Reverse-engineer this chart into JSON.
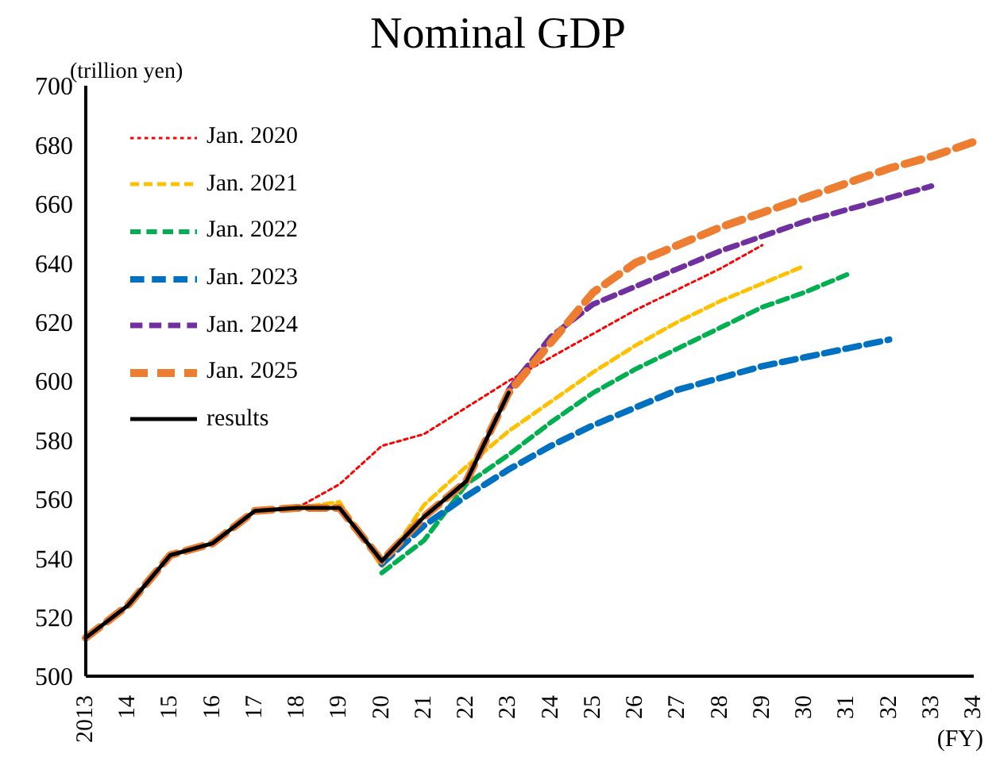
{
  "chart_data": {
    "type": "line",
    "title": "Nominal GDP",
    "ylabel": "(trillion yen)",
    "xlabel": "(FY)",
    "categories": [
      "2013",
      "14",
      "15",
      "16",
      "17",
      "18",
      "19",
      "20",
      "21",
      "22",
      "23",
      "24",
      "25",
      "26",
      "27",
      "28",
      "29",
      "30",
      "31",
      "32",
      "33",
      "34"
    ],
    "ylim": [
      500,
      700
    ],
    "yticks": [
      500,
      520,
      540,
      560,
      580,
      600,
      620,
      640,
      660,
      680,
      700
    ],
    "grid": false,
    "legend": "top left",
    "marker": "none",
    "series": [
      {
        "name": "Jan. 2020",
        "color": "#ff0000",
        "line_style": "dotted",
        "values": [
          null,
          null,
          null,
          null,
          null,
          557,
          565,
          578,
          582,
          591,
          600,
          608,
          616,
          624,
          631,
          638,
          646,
          null,
          null,
          null,
          null,
          null
        ]
      },
      {
        "name": "Jan. 2021",
        "color": "#ffc000",
        "line_style": "dashed",
        "values": [
          null,
          null,
          null,
          null,
          null,
          557,
          559,
          537,
          558,
          571,
          583,
          593,
          603,
          612,
          620,
          627,
          633,
          639,
          null,
          null,
          null,
          null
        ]
      },
      {
        "name": "Jan. 2022",
        "color": "#00b050",
        "line_style": "dashed",
        "values": [
          null,
          null,
          null,
          null,
          null,
          null,
          null,
          535,
          546,
          565,
          575,
          586,
          596,
          604,
          611,
          618,
          625,
          630,
          636,
          null,
          null,
          null
        ]
      },
      {
        "name": "Jan. 2023",
        "color": "#0070c0",
        "line_style": "dashed",
        "values": [
          null,
          null,
          null,
          null,
          null,
          null,
          null,
          538,
          551,
          561,
          570,
          578,
          585,
          591,
          597,
          601,
          605,
          608,
          611,
          614,
          null,
          null
        ]
      },
      {
        "name": "Jan. 2024",
        "color": "#7030a0",
        "line_style": "dashed",
        "values": [
          null,
          null,
          null,
          null,
          null,
          null,
          null,
          null,
          null,
          null,
          597,
          615,
          626,
          632,
          638,
          644,
          649,
          654,
          658,
          662,
          666,
          null
        ]
      },
      {
        "name": "Jan. 2025",
        "color": "#ed7d31",
        "line_style": "dashed",
        "values": [
          513,
          524,
          541,
          545,
          556,
          557,
          557,
          539,
          554,
          566,
          596,
          613,
          630,
          640,
          646,
          652,
          657,
          662,
          667,
          672,
          676,
          681
        ]
      },
      {
        "name": "results",
        "color": "#000000",
        "line_style": "solid",
        "values": [
          513,
          524,
          541,
          545,
          556,
          557,
          557,
          539,
          554,
          566,
          596,
          null,
          null,
          null,
          null,
          null,
          null,
          null,
          null,
          null,
          null,
          null
        ]
      }
    ]
  }
}
